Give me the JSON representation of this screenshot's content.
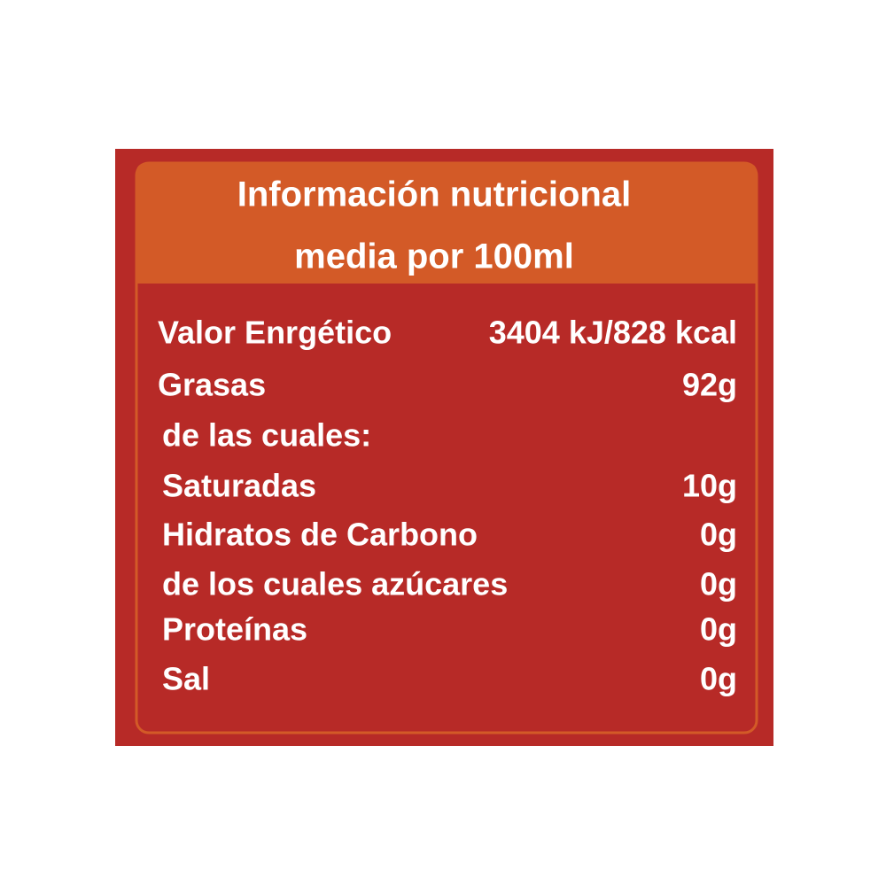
{
  "header": {
    "title_lines": [
      "Información nutricional",
      "media por 100ml"
    ]
  },
  "table": {
    "rows": [
      [
        "Valor Enrgético",
        "3404 kJ/828 kcal"
      ],
      [
        "Grasas",
        "92g"
      ],
      [
        "de las cuales:"
      ],
      [
        "Saturadas",
        "10g"
      ],
      [
        "Hidratos de Carbono",
        "0g"
      ],
      [
        "de los cuales azúcares",
        "0g"
      ],
      [
        "Proteínas",
        "0g"
      ],
      [
        "Sal",
        "0g"
      ]
    ]
  }
}
